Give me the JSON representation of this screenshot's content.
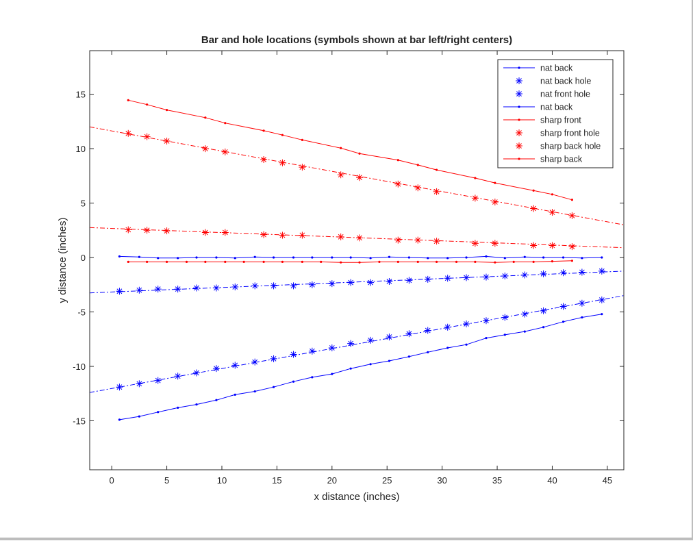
{
  "chart_data": {
    "type": "line",
    "title": "Bar and hole locations (symbols shown at bar left/right centers)",
    "xlabel": "x distance (inches)",
    "ylabel": "y distance (inches)",
    "xlim": [
      -2,
      46.5
    ],
    "ylim": [
      -19.5,
      19
    ],
    "xticks": [
      0,
      5,
      10,
      15,
      20,
      25,
      30,
      35,
      40,
      45
    ],
    "yticks": [
      -15,
      -10,
      -5,
      0,
      5,
      10,
      15
    ],
    "grid": false,
    "legend_position": "top-right",
    "colors": {
      "nat": "#0000ff",
      "sharp": "#ff0000"
    },
    "series": [
      {
        "name": "nat back",
        "color": "#0000ff",
        "line": "solid",
        "marker": "dot",
        "x": [
          0.7,
          2.5,
          4.2,
          6.0,
          7.7,
          9.5,
          11.2,
          13.0,
          14.7,
          16.5,
          18.2,
          20.0,
          21.7,
          23.5,
          25.2,
          27.0,
          28.7,
          30.5,
          32.2,
          34.0,
          35.7,
          37.5,
          39.2,
          41.0,
          42.7,
          44.5
        ],
        "y": [
          -14.9,
          -14.6,
          -14.2,
          -13.8,
          -13.5,
          -13.1,
          -12.6,
          -12.3,
          -11.9,
          -11.4,
          -11.0,
          -10.7,
          -10.2,
          -9.8,
          -9.5,
          -9.1,
          -8.7,
          -8.3,
          -8.0,
          -7.4,
          -7.1,
          -6.8,
          -6.4,
          -5.9,
          -5.5,
          -5.2
        ]
      },
      {
        "name": "nat back hole",
        "color": "#0000ff",
        "line": "dashdot",
        "marker": "asterisk",
        "line_x": [
          -2,
          46.5
        ],
        "line_y": [
          -12.4,
          -3.5
        ],
        "x": [
          0.7,
          2.5,
          4.2,
          6.0,
          7.7,
          9.5,
          11.2,
          13.0,
          14.7,
          16.5,
          18.2,
          20.0,
          21.7,
          23.5,
          25.2,
          27.0,
          28.7,
          30.5,
          32.2,
          34.0,
          35.7,
          37.5,
          39.2,
          41.0,
          42.7,
          44.5
        ],
        "y": [
          -11.9,
          -11.6,
          -11.3,
          -10.9,
          -10.6,
          -10.2,
          -9.9,
          -9.6,
          -9.3,
          -8.9,
          -8.6,
          -8.3,
          -7.9,
          -7.6,
          -7.3,
          -7.0,
          -6.7,
          -6.4,
          -6.1,
          -5.8,
          -5.5,
          -5.2,
          -4.9,
          -4.5,
          -4.2,
          -3.9
        ]
      },
      {
        "name": "nat front hole",
        "color": "#0000ff",
        "line": "dashdot",
        "marker": "asterisk",
        "line_x": [
          -2,
          46.5
        ],
        "line_y": [
          -3.25,
          -1.25
        ],
        "x": [
          0.7,
          2.5,
          4.2,
          6.0,
          7.7,
          9.5,
          11.2,
          13.0,
          14.7,
          16.5,
          18.2,
          20.0,
          21.7,
          23.5,
          25.2,
          27.0,
          28.7,
          30.5,
          32.2,
          34.0,
          35.7,
          37.5,
          39.2,
          41.0,
          42.7,
          44.5
        ],
        "y": [
          -3.1,
          -3.0,
          -2.9,
          -2.9,
          -2.8,
          -2.8,
          -2.7,
          -2.6,
          -2.6,
          -2.6,
          -2.5,
          -2.4,
          -2.3,
          -2.3,
          -2.2,
          -2.1,
          -2.0,
          -1.9,
          -1.85,
          -1.8,
          -1.7,
          -1.6,
          -1.5,
          -1.4,
          -1.35,
          -1.25
        ]
      },
      {
        "name": "nat back",
        "color": "#0000ff",
        "line": "solid",
        "marker": "dot",
        "x": [
          0.7,
          2.5,
          4.2,
          6.0,
          7.7,
          9.5,
          11.2,
          13.0,
          14.7,
          16.5,
          18.2,
          20.0,
          21.7,
          23.5,
          25.2,
          27.0,
          28.7,
          30.5,
          32.2,
          34.0,
          35.7,
          37.5,
          39.2,
          41.0,
          42.7,
          44.5
        ],
        "y": [
          0.1,
          0.05,
          -0.05,
          -0.05,
          0.0,
          0.0,
          -0.05,
          0.05,
          0.0,
          0.0,
          0.0,
          0.0,
          0.0,
          -0.05,
          0.05,
          0.0,
          -0.05,
          -0.05,
          0.0,
          0.1,
          -0.05,
          0.05,
          0.0,
          0.0,
          -0.05,
          0.0
        ]
      },
      {
        "name": "sharp front",
        "color": "#ff0000",
        "line": "solid",
        "marker": "dot",
        "x": [
          1.5,
          3.2,
          5.0,
          6.8,
          8.5,
          10.3,
          12.0,
          13.8,
          15.5,
          17.3,
          19.0,
          20.8,
          22.5,
          24.3,
          26.0,
          27.8,
          29.5,
          31.3,
          33.0,
          34.8,
          36.5,
          38.3,
          40.0,
          41.8
        ],
        "y": [
          -0.4,
          -0.4,
          -0.4,
          -0.4,
          -0.4,
          -0.4,
          -0.4,
          -0.4,
          -0.4,
          -0.4,
          -0.4,
          -0.45,
          -0.45,
          -0.4,
          -0.4,
          -0.4,
          -0.4,
          -0.4,
          -0.4,
          -0.45,
          -0.4,
          -0.4,
          -0.35,
          -0.3
        ]
      },
      {
        "name": "sharp front hole",
        "color": "#ff0000",
        "line": "dashdot",
        "marker": "asterisk",
        "line_x": [
          -2,
          46.5
        ],
        "line_y": [
          2.75,
          0.9
        ],
        "x": [
          1.5,
          3.2,
          5.0,
          8.5,
          10.3,
          13.8,
          15.5,
          17.3,
          20.8,
          22.5,
          26.0,
          27.8,
          29.5,
          33.0,
          34.8,
          38.3,
          40.0,
          41.8
        ],
        "y": [
          2.55,
          2.5,
          2.45,
          2.3,
          2.3,
          2.1,
          2.05,
          2.05,
          1.9,
          1.8,
          1.6,
          1.6,
          1.5,
          1.3,
          1.3,
          1.1,
          1.1,
          1.0
        ]
      },
      {
        "name": "sharp back hole",
        "color": "#ff0000",
        "line": "dashdot",
        "marker": "asterisk",
        "line_x": [
          -2,
          46.5
        ],
        "line_y": [
          12.0,
          3.0
        ],
        "x": [
          1.5,
          3.2,
          5.0,
          8.5,
          10.3,
          13.8,
          15.5,
          17.3,
          20.8,
          22.5,
          26.0,
          27.8,
          29.5,
          33.0,
          34.8,
          38.3,
          40.0,
          41.8
        ],
        "y": [
          11.4,
          11.1,
          10.7,
          10.0,
          9.7,
          9.0,
          8.7,
          8.3,
          7.6,
          7.35,
          6.75,
          6.4,
          6.05,
          5.45,
          5.1,
          4.5,
          4.15,
          3.85
        ]
      },
      {
        "name": "sharp back",
        "color": "#ff0000",
        "line": "solid",
        "marker": "dot",
        "x": [
          1.5,
          3.2,
          5.0,
          8.5,
          10.3,
          13.8,
          15.5,
          17.3,
          20.8,
          22.5,
          26.0,
          27.8,
          29.5,
          33.0,
          34.8,
          38.3,
          40.0,
          41.8
        ],
        "y": [
          14.45,
          14.05,
          13.55,
          12.85,
          12.35,
          11.65,
          11.25,
          10.8,
          10.05,
          9.55,
          8.95,
          8.5,
          8.05,
          7.3,
          6.85,
          6.15,
          5.8,
          5.3
        ]
      }
    ]
  }
}
